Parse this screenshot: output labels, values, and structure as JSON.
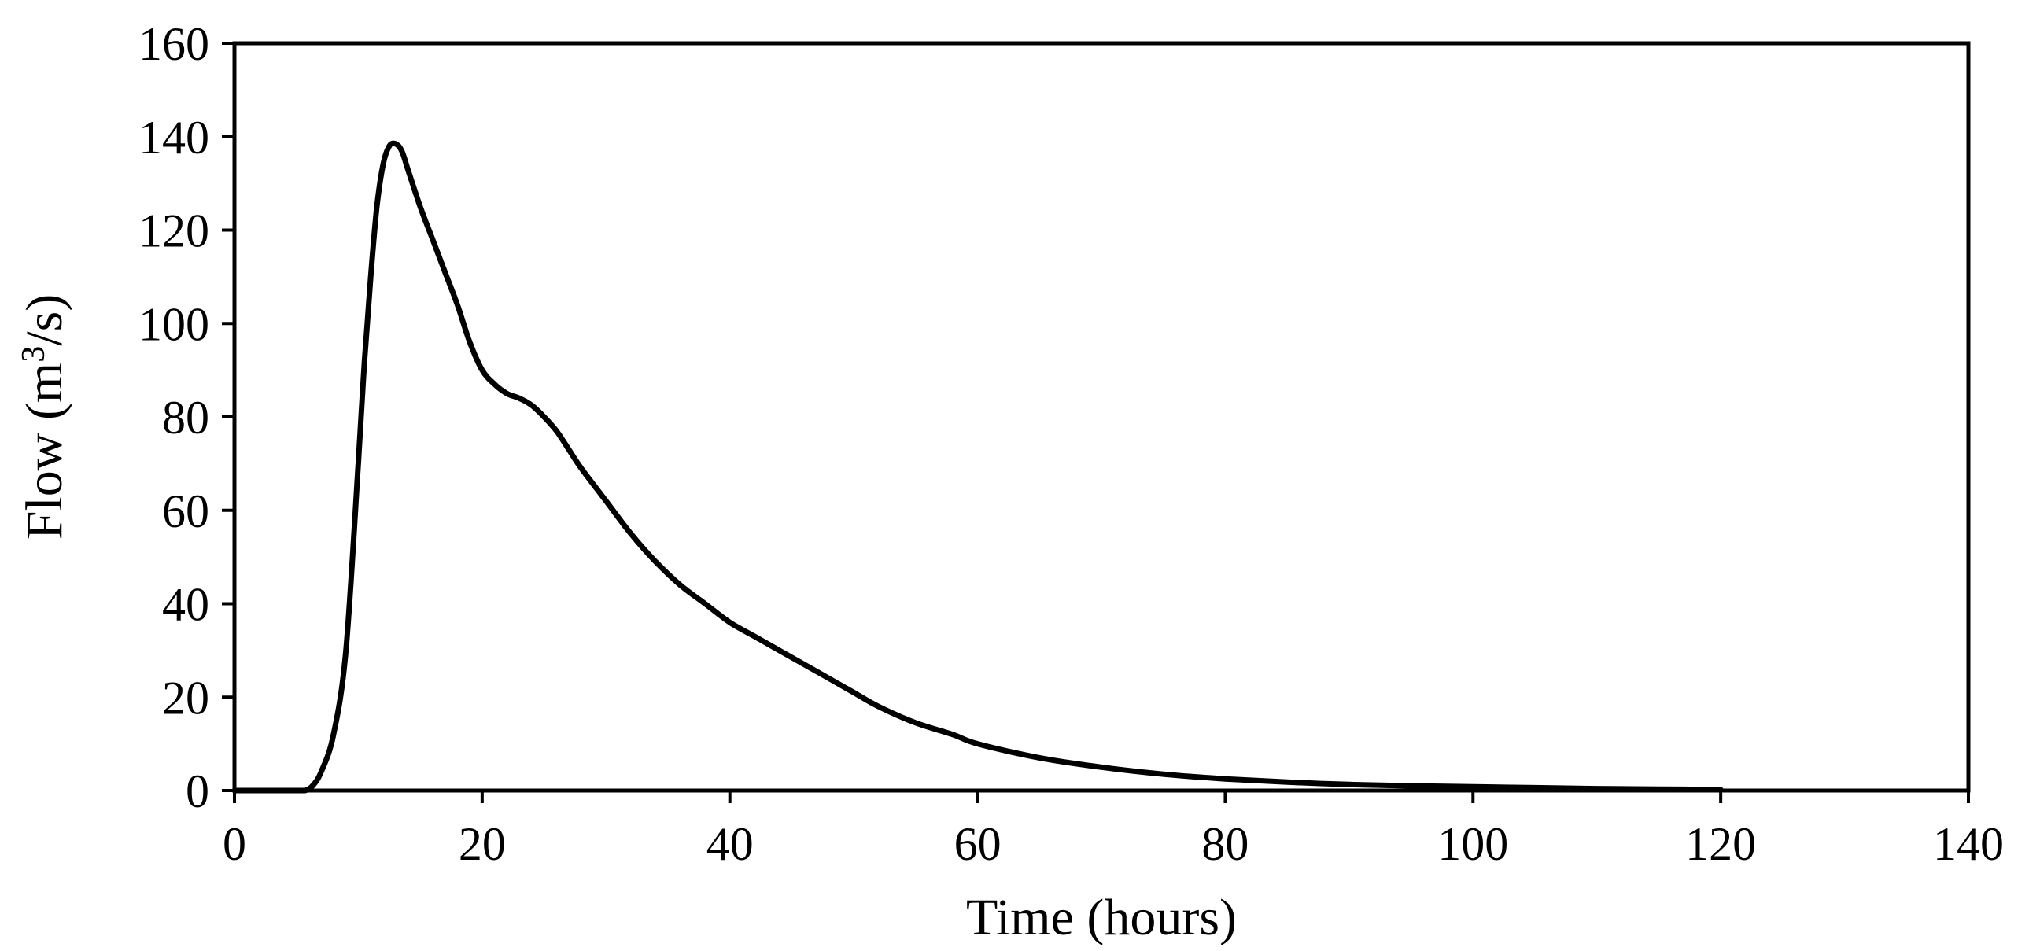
{
  "chart_data": {
    "type": "line",
    "title": "",
    "xlabel": "Time (hours)",
    "ylabel": {
      "prefix": "Flow (m",
      "superscript": "3",
      "suffix": "/s)"
    },
    "xlim": [
      0,
      140
    ],
    "ylim": [
      0,
      160
    ],
    "xticks": [
      0,
      20,
      40,
      60,
      80,
      100,
      120,
      140
    ],
    "yticks": [
      0,
      20,
      40,
      60,
      80,
      100,
      120,
      140,
      160
    ],
    "grid": false,
    "legend": "none",
    "line_color": "#000000",
    "series": [
      {
        "x": [
          0,
          5,
          5.7,
          6.3,
          7,
          8,
          9,
          10,
          10.5,
          11,
          11.5,
          12,
          12.5,
          13,
          13.5,
          14,
          15,
          16,
          17,
          18,
          19,
          20,
          21,
          22,
          23,
          24,
          25,
          26,
          27,
          28,
          30,
          32,
          34,
          36,
          38,
          40,
          42,
          44,
          46,
          48,
          50,
          52,
          55,
          58,
          60,
          65,
          70,
          75,
          80,
          85,
          90,
          95,
          100,
          105,
          110,
          115,
          120
        ],
        "y": [
          0,
          0,
          0,
          1,
          4,
          12,
          30,
          70,
          92,
          110,
          125,
          134,
          138,
          138.5,
          137,
          133,
          125,
          118,
          111,
          104,
          96,
          90,
          87,
          85,
          84,
          82.5,
          80,
          77,
          73,
          69,
          62,
          55,
          49,
          44,
          40,
          36,
          33,
          30,
          27,
          24,
          21,
          18,
          14.5,
          12,
          10,
          7,
          5,
          3.5,
          2.5,
          1.8,
          1.3,
          1,
          0.8,
          0.6,
          0.4,
          0.3,
          0.2
        ]
      }
    ]
  }
}
